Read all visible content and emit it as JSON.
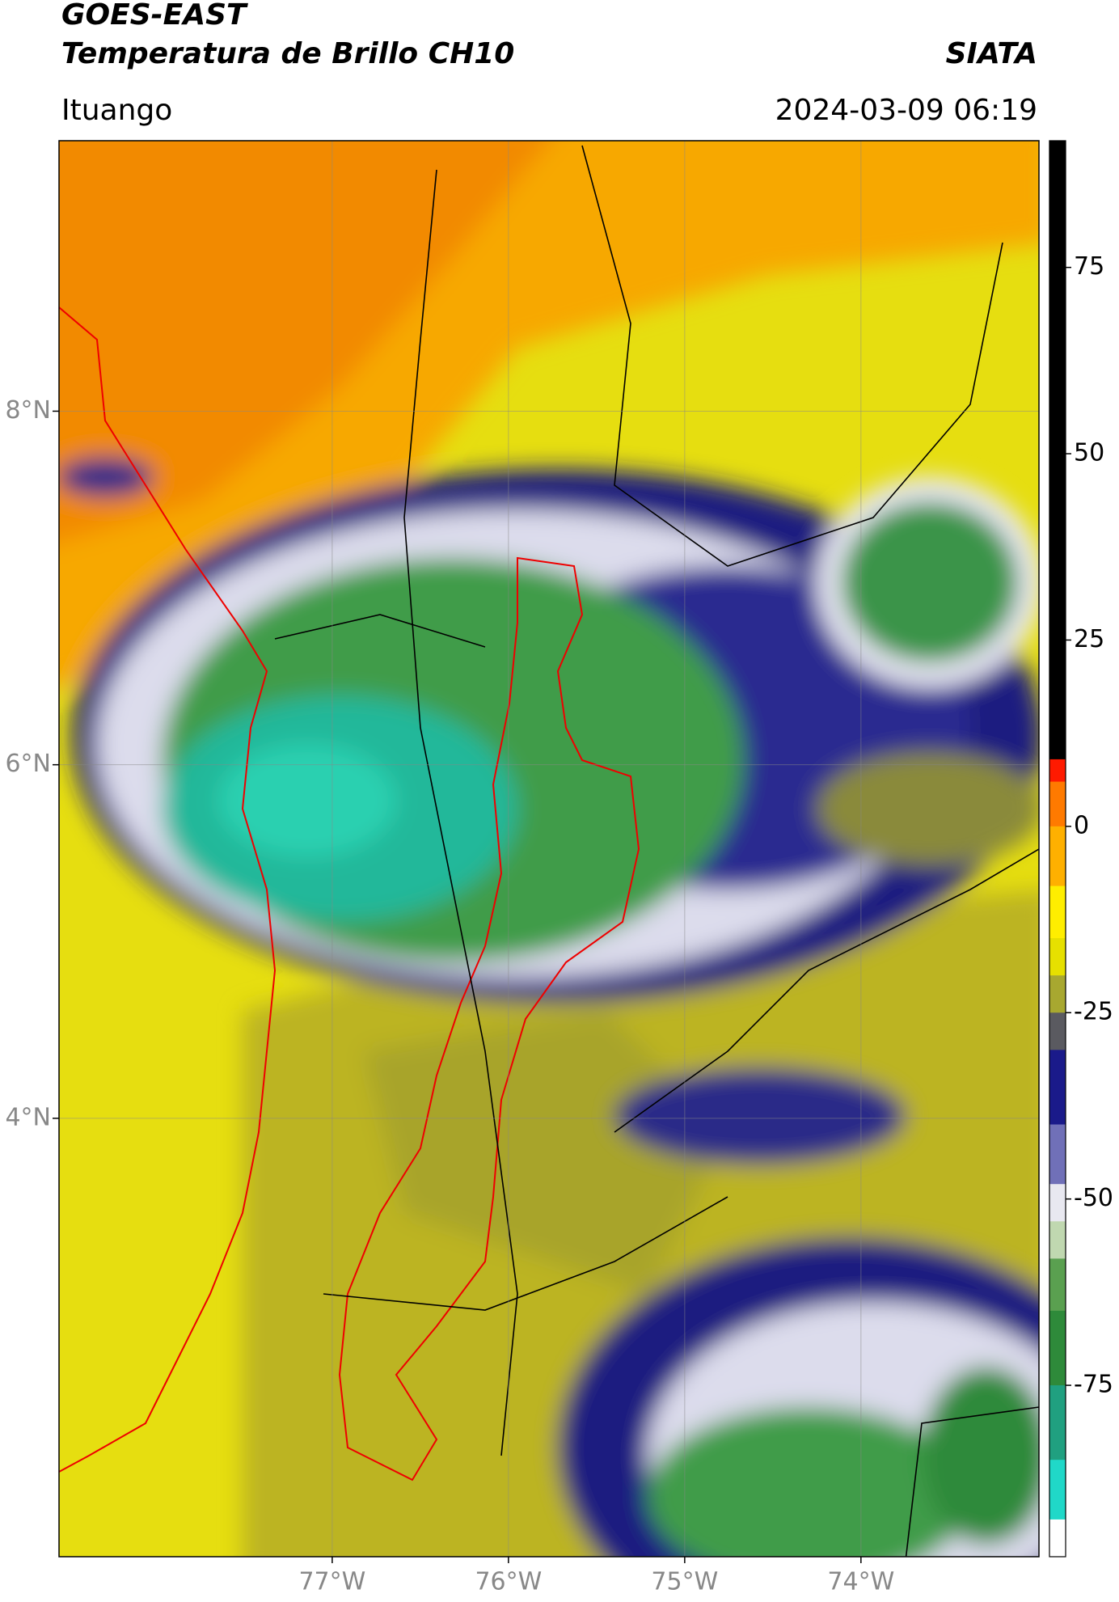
{
  "header": {
    "title": "GOES-EAST",
    "subtitle": "Temperatura de Brillo CH10",
    "brand": "SIATA",
    "location": "Ituango",
    "datetime": "2024-03-09 06:19"
  },
  "map": {
    "lonlim": [
      -78.55,
      -72.99
    ],
    "latlim": [
      1.52,
      9.53
    ],
    "lonticks": [
      {
        "value": -77,
        "label": "77°W"
      },
      {
        "value": -76,
        "label": "76°W"
      },
      {
        "value": -75,
        "label": "75°W"
      },
      {
        "value": -74,
        "label": "74°W"
      }
    ],
    "latticks": [
      {
        "value": 8,
        "label": "8°N"
      },
      {
        "value": 6,
        "label": "6°N"
      },
      {
        "value": 4,
        "label": "4°N"
      }
    ],
    "grid": true
  },
  "colorbar": {
    "clim": [
      -98,
      92
    ],
    "ticks": [
      75,
      50,
      25,
      0,
      -25,
      -50,
      -75
    ],
    "levels": [
      92,
      9,
      6,
      0,
      -8,
      -15,
      -20,
      -25,
      -30,
      -40,
      -48,
      -53,
      -58,
      -65,
      -75,
      -85,
      -93,
      -98
    ],
    "colors": [
      "#000000",
      "#ff1a00",
      "#ff7a00",
      "#ffb000",
      "#ffee00",
      "#e6e000",
      "#a8a830",
      "#5a5a60",
      "#1a1a8a",
      "#7070b8",
      "#e8e8f0",
      "#c0d8b0",
      "#5aa050",
      "#2e8a3a",
      "#20a080",
      "#20d8c8",
      "#ffffff"
    ]
  }
}
